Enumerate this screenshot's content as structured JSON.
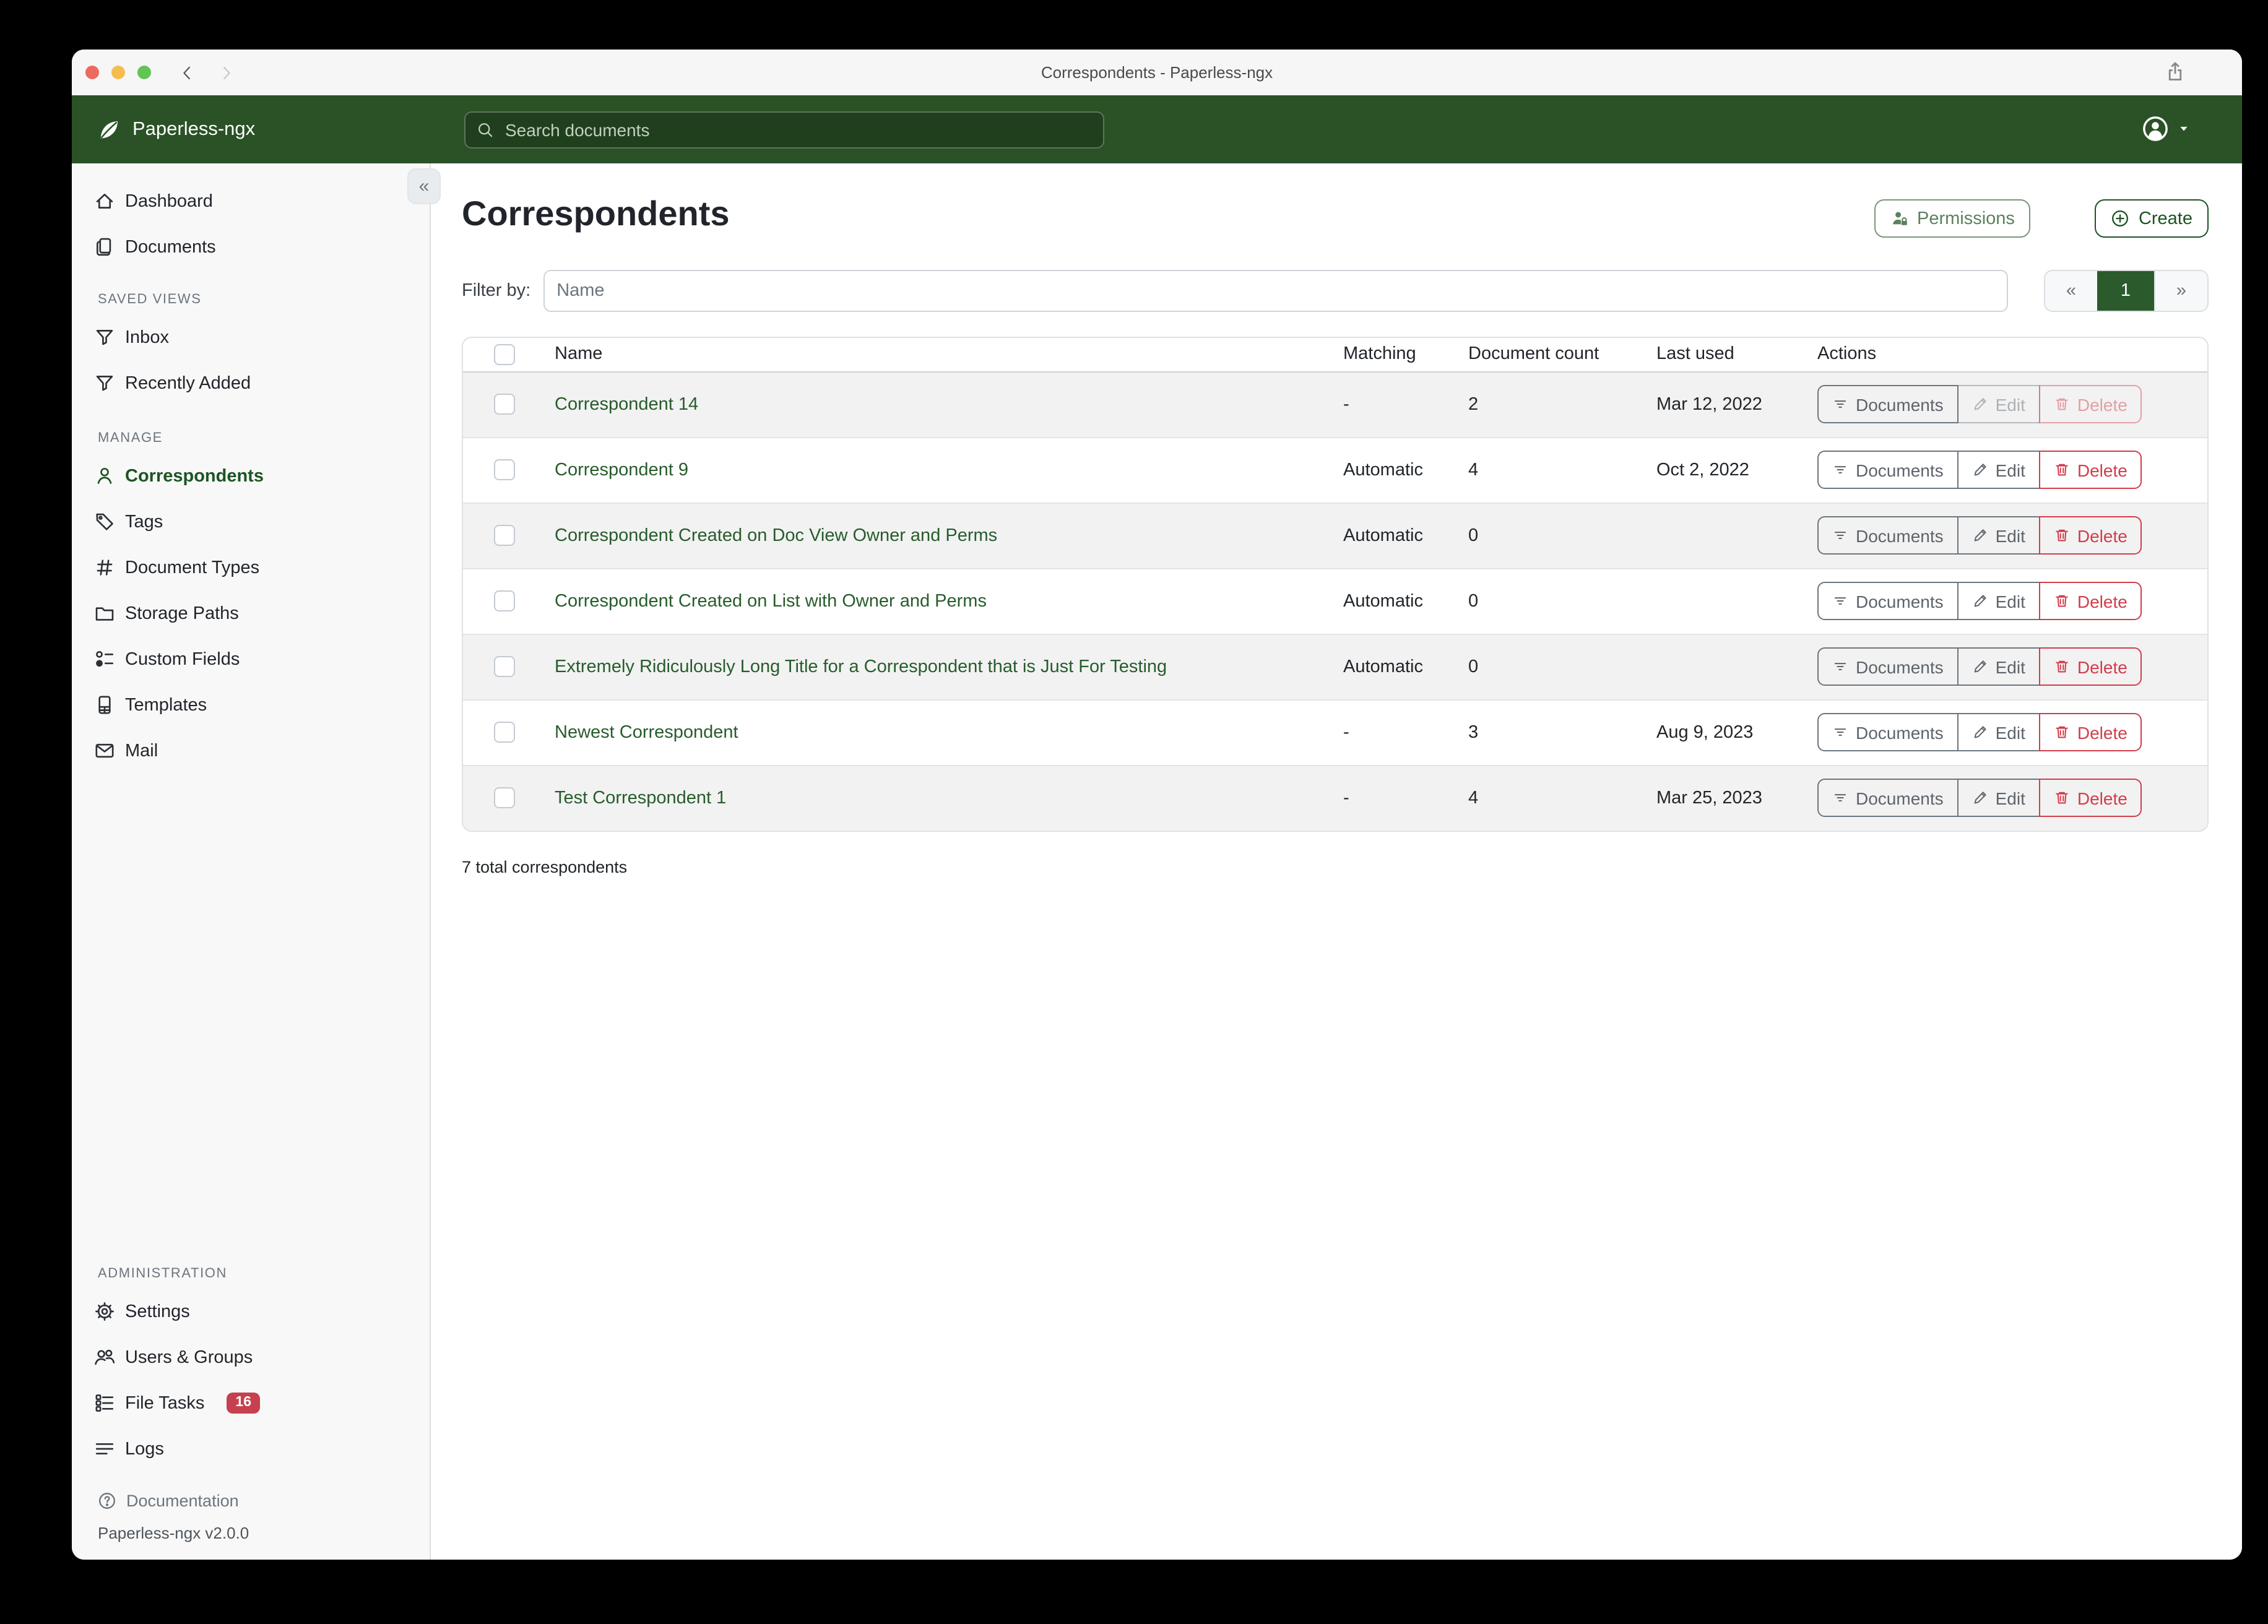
{
  "window": {
    "title": "Correspondents - Paperless-ngx"
  },
  "titlebar": {
    "back_icon": "chevron-left",
    "forward_icon": "chevron-right",
    "share_icon": "share"
  },
  "appbar": {
    "brand": "Paperless-ngx",
    "logo_icon": "leaf",
    "search_placeholder": "Search documents",
    "search_value": "",
    "avatar_icon": "person-circle"
  },
  "sidebar": {
    "collapse_glyph": "«",
    "primary": [
      {
        "label": "Dashboard",
        "icon": "home"
      },
      {
        "label": "Documents",
        "icon": "files"
      }
    ],
    "sections": [
      {
        "label": "SAVED VIEWS",
        "items": [
          {
            "label": "Inbox",
            "icon": "funnel"
          },
          {
            "label": "Recently Added",
            "icon": "funnel"
          }
        ]
      },
      {
        "label": "MANAGE",
        "items": [
          {
            "label": "Correspondents",
            "icon": "person",
            "active": true
          },
          {
            "label": "Tags",
            "icon": "tag"
          },
          {
            "label": "Document Types",
            "icon": "hash"
          },
          {
            "label": "Storage Paths",
            "icon": "folder"
          },
          {
            "label": "Custom Fields",
            "icon": "fields"
          },
          {
            "label": "Templates",
            "icon": "file-lines"
          },
          {
            "label": "Mail",
            "icon": "envelope"
          }
        ]
      },
      {
        "label": "ADMINISTRATION",
        "admin": true,
        "items": [
          {
            "label": "Settings",
            "icon": "gear"
          },
          {
            "label": "Users & Groups",
            "icon": "people"
          },
          {
            "label": "File Tasks",
            "icon": "list-task",
            "badge": "16"
          },
          {
            "label": "Logs",
            "icon": "text-lines"
          }
        ]
      }
    ],
    "footer": {
      "documentation": "Documentation",
      "documentation_icon": "question-circle",
      "version": "Paperless-ngx v2.0.0"
    }
  },
  "page": {
    "title": "Correspondents",
    "permissions_label": "Permissions",
    "create_label": "Create",
    "filter_label": "Filter by:",
    "filter_placeholder": "Name",
    "filter_value": "",
    "pagination": {
      "prev": "«",
      "page": "1",
      "next": "»"
    },
    "total": "7 total correspondents"
  },
  "table": {
    "headers": [
      "Name",
      "Matching",
      "Document count",
      "Last used",
      "Actions"
    ],
    "action_labels": {
      "documents": "Documents",
      "edit": "Edit",
      "delete": "Delete"
    },
    "rows": [
      {
        "name": "Correspondent 14",
        "matching": "-",
        "count": "2",
        "last_used": "Mar 12, 2022",
        "edit_disabled": true,
        "delete_disabled": true
      },
      {
        "name": "Correspondent 9",
        "matching": "Automatic",
        "count": "4",
        "last_used": "Oct 2, 2022"
      },
      {
        "name": "Correspondent Created on Doc View Owner and Perms",
        "matching": "Automatic",
        "count": "0",
        "last_used": ""
      },
      {
        "name": "Correspondent Created on List with Owner and Perms",
        "matching": "Automatic",
        "count": "0",
        "last_used": ""
      },
      {
        "name": "Extremely Ridiculously Long Title for a Correspondent that is Just For Testing",
        "matching": "Automatic",
        "count": "0",
        "last_used": ""
      },
      {
        "name": "Newest Correspondent",
        "matching": "-",
        "count": "3",
        "last_used": "Aug 9, 2023"
      },
      {
        "name": "Test Correspondent 1",
        "matching": "-",
        "count": "4",
        "last_used": "Mar 25, 2023"
      }
    ]
  },
  "colors": {
    "header_green": "#2a5226",
    "accent_green": "#1d5422",
    "link_green": "#275c2c",
    "pagination_active_green": "#2b5a2d",
    "danger_red": "#d23d4b",
    "badge_red": "#c7404f",
    "row_stripe": "#f2f2f2",
    "sidebar_bg": "#f8f8f8",
    "titlebar_bg": "#f6f6f6"
  }
}
